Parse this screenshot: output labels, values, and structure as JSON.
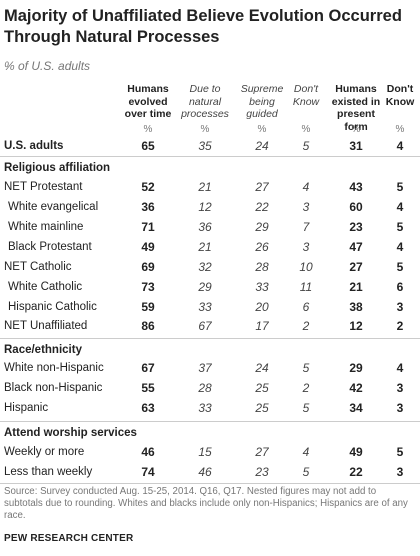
{
  "title": "Majority of Unaffiliated Believe Evolution Occurred Through Natural Processes",
  "subtitle": "% of U.S. adults",
  "chart_data": {
    "type": "table",
    "columns": [
      {
        "key": "humans_evolved",
        "label": "Humans evolved over time",
        "bold": true
      },
      {
        "key": "natural",
        "label": "Due to natural processes",
        "bold": false
      },
      {
        "key": "supreme",
        "label": "Supreme being guided",
        "bold": false
      },
      {
        "key": "dk1",
        "label": "Don't Know",
        "bold": false
      },
      {
        "key": "present_form",
        "label": "Humans existed in present form",
        "bold": true
      },
      {
        "key": "dk2",
        "label": "Don't Know",
        "bold": true
      }
    ],
    "unit_label": "%",
    "rows": [
      {
        "label": "U.S. adults",
        "bold": true,
        "values": [
          65,
          35,
          24,
          5,
          31,
          4
        ]
      },
      {
        "section": "Religious affiliation"
      },
      {
        "label": "NET Protestant",
        "values": [
          52,
          21,
          27,
          4,
          43,
          5
        ]
      },
      {
        "label": "White evangelical",
        "indent": true,
        "values": [
          36,
          12,
          22,
          3,
          60,
          4
        ]
      },
      {
        "label": "White mainline",
        "indent": true,
        "values": [
          71,
          36,
          29,
          7,
          23,
          5
        ]
      },
      {
        "label": "Black Protestant",
        "indent": true,
        "values": [
          49,
          21,
          26,
          3,
          47,
          4
        ]
      },
      {
        "label": "NET Catholic",
        "values": [
          69,
          32,
          28,
          10,
          27,
          5
        ]
      },
      {
        "label": "White Catholic",
        "indent": true,
        "values": [
          73,
          29,
          33,
          11,
          21,
          6
        ]
      },
      {
        "label": "Hispanic Catholic",
        "indent": true,
        "values": [
          59,
          33,
          20,
          6,
          38,
          3
        ]
      },
      {
        "label": "NET Unaffiliated",
        "values": [
          86,
          67,
          17,
          2,
          12,
          2
        ]
      },
      {
        "section": "Race/ethnicity"
      },
      {
        "label": "White non-Hispanic",
        "values": [
          67,
          37,
          24,
          5,
          29,
          4
        ]
      },
      {
        "label": "Black non-Hispanic",
        "values": [
          55,
          28,
          25,
          2,
          42,
          3
        ]
      },
      {
        "label": "Hispanic",
        "values": [
          63,
          33,
          25,
          5,
          34,
          3
        ]
      },
      {
        "section": "Attend worship services"
      },
      {
        "label": "Weekly or more",
        "values": [
          46,
          15,
          27,
          4,
          49,
          5
        ]
      },
      {
        "label": "Less than weekly",
        "values": [
          74,
          46,
          23,
          5,
          22,
          3
        ]
      }
    ]
  },
  "source": "Source: Survey conducted Aug. 15-25, 2014. Q16, Q17. Nested figures may not add to subtotals due to rounding. Whites and blacks include only non-Hispanics; Hispanics are of any race.",
  "brand": "PEW RESEARCH CENTER"
}
